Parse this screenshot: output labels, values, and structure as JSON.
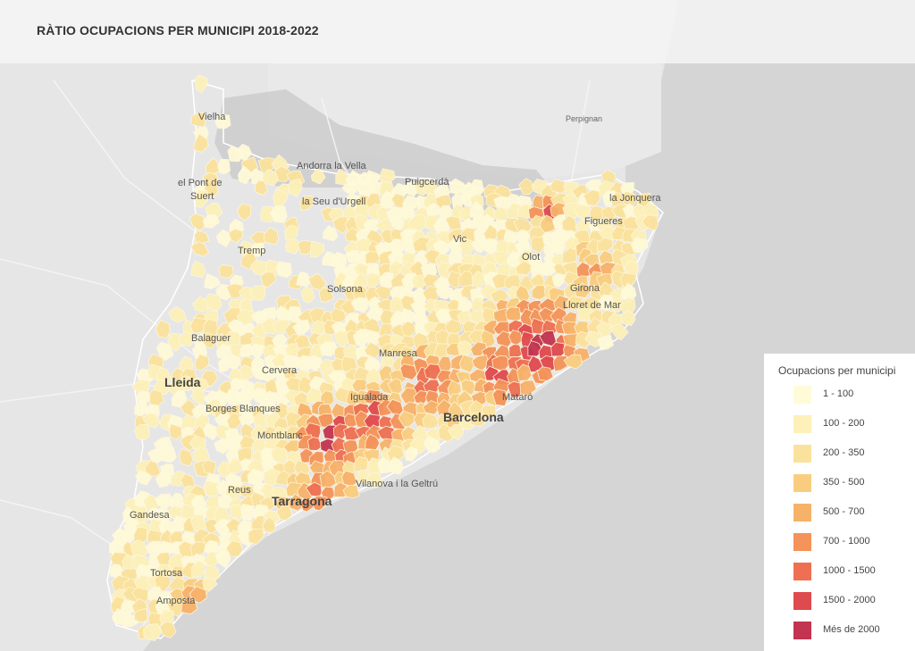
{
  "title": "RÀTIO OCUPACIONS PER MUNICIPI 2018-2022",
  "legend": {
    "title": "Ocupacions per municipi",
    "items": [
      {
        "label": "1 - 100",
        "color": "#fffbd8"
      },
      {
        "label": "100 - 200",
        "color": "#fdf0b8"
      },
      {
        "label": "200 - 350",
        "color": "#fbe29c"
      },
      {
        "label": "350 - 500",
        "color": "#f9cd80"
      },
      {
        "label": "500 - 700",
        "color": "#f7b26a"
      },
      {
        "label": "700 - 1000",
        "color": "#f4935a"
      },
      {
        "label": "1000 - 1500",
        "color": "#ee6f52"
      },
      {
        "label": "1500 - 2000",
        "color": "#df4a4e"
      },
      {
        "label": "Més de 2000",
        "color": "#c2344f"
      }
    ]
  },
  "place_labels": [
    "Perpignan",
    "Vielha",
    "el Pont de",
    "Suert",
    "Andorra la Vella",
    "la Seu d'Urgell",
    "Puigcerdà",
    "Tremp",
    "Solsona",
    "Vic",
    "Figueres",
    "Girona",
    "Lloret de Mar",
    "Balaguer",
    "Lleida",
    "Cervera",
    "Manresa",
    "Igualada",
    "Borges Blanques",
    "Barcelona",
    "Mataró",
    "Montblanc",
    "Vilanova i la Geltrú",
    "Tarragona",
    "Reus",
    "Gandesa",
    "Tortosa",
    "Amposta",
    "la Jonquera",
    "Olot"
  ],
  "palette": {
    "sea": "#d6d6d6",
    "land": "#e8e8e8",
    "mountain": "#c9c9c9",
    "road": "#f7f7f7",
    "border": "#fff6dc"
  }
}
